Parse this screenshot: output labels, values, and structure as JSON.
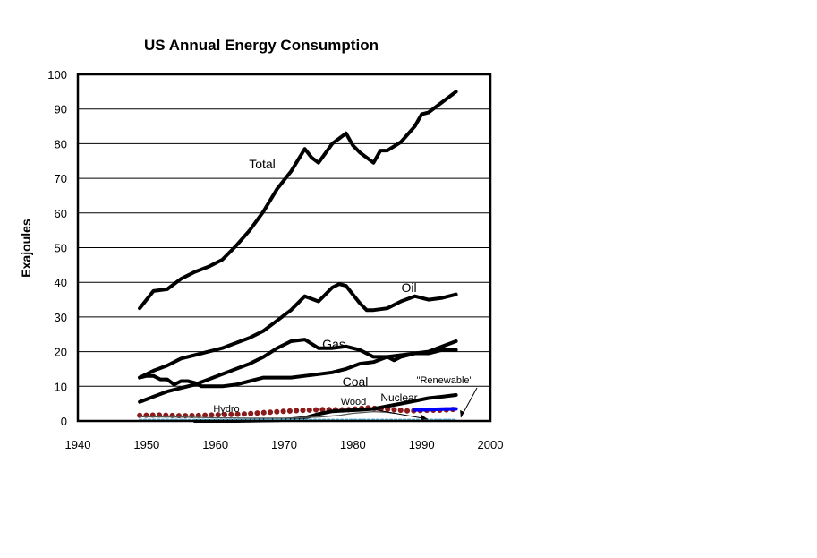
{
  "chart_data": {
    "type": "line",
    "title": "US Annual Energy Consumption",
    "xlabel": "",
    "ylabel": "Exajoules",
    "xlim": [
      1940,
      2000
    ],
    "ylim": [
      0,
      100
    ],
    "x_ticks": [
      1940,
      1950,
      1960,
      1970,
      1980,
      1990,
      2000
    ],
    "y_ticks": [
      0,
      10,
      20,
      30,
      40,
      50,
      60,
      70,
      80,
      90,
      100
    ],
    "grid": "horizontal",
    "legend": "none",
    "series": [
      {
        "name": "Total",
        "color": "#000000",
        "style": "thick",
        "x": [
          1949,
          1951,
          1953,
          1955,
          1957,
          1959,
          1961,
          1963,
          1965,
          1967,
          1969,
          1971,
          1973,
          1974,
          1975,
          1977,
          1979,
          1980,
          1981,
          1983,
          1984,
          1985,
          1987,
          1989,
          1990,
          1991,
          1993,
          1995
        ],
        "values": [
          32.5,
          37.5,
          38,
          41,
          43,
          44.5,
          46.5,
          50.5,
          55,
          60.5,
          67,
          72,
          78.5,
          76,
          74.5,
          80,
          83,
          79.5,
          77.5,
          74.5,
          78,
          78,
          80.5,
          85,
          88.5,
          89,
          92,
          95
        ]
      },
      {
        "name": "Oil",
        "color": "#000000",
        "style": "thick",
        "x": [
          1949,
          1951,
          1953,
          1955,
          1957,
          1959,
          1961,
          1963,
          1965,
          1967,
          1969,
          1971,
          1973,
          1975,
          1977,
          1978,
          1979,
          1980,
          1981,
          1982,
          1983,
          1985,
          1987,
          1989,
          1991,
          1993,
          1995
        ],
        "values": [
          12.5,
          14.5,
          16,
          18,
          19,
          20,
          21,
          22.5,
          24,
          26,
          29,
          32,
          36,
          34.5,
          38.5,
          39.5,
          39,
          36.5,
          34,
          32,
          32,
          32.5,
          34.5,
          36,
          35,
          35.5,
          36.5
        ]
      },
      {
        "name": "Gas",
        "color": "#000000",
        "style": "thick",
        "x": [
          1949,
          1951,
          1953,
          1955,
          1957,
          1959,
          1961,
          1963,
          1965,
          1967,
          1969,
          1971,
          1973,
          1975,
          1977,
          1979,
          1981,
          1983,
          1985,
          1986,
          1987,
          1989,
          1991,
          1993,
          1995
        ],
        "values": [
          5.5,
          7,
          8.5,
          9.5,
          10.5,
          12,
          13.5,
          15,
          16.5,
          18.5,
          21,
          23,
          23.5,
          21,
          21,
          21.5,
          20.5,
          18.5,
          18.5,
          17.5,
          18.5,
          19.5,
          20,
          21.5,
          23
        ]
      },
      {
        "name": "Coal",
        "color": "#000000",
        "style": "thick",
        "x": [
          1949,
          1950,
          1951,
          1952,
          1953,
          1954,
          1955,
          1956,
          1957,
          1958,
          1959,
          1961,
          1963,
          1965,
          1967,
          1969,
          1971,
          1973,
          1975,
          1977,
          1979,
          1981,
          1983,
          1985,
          1987,
          1989,
          1991,
          1993,
          1995
        ],
        "values": [
          12.5,
          13,
          13,
          12,
          12,
          10.5,
          11.5,
          11.5,
          11,
          10,
          10,
          10,
          10.5,
          11.5,
          12.5,
          12.5,
          12.5,
          13,
          13.5,
          14,
          15,
          16.5,
          17,
          18.5,
          19,
          19.5,
          19.5,
          20.5,
          20.5
        ]
      },
      {
        "name": "Hydro",
        "color": "#8b1a1a",
        "style": "dotted",
        "x": [
          1949,
          1952,
          1955,
          1958,
          1961,
          1964,
          1967,
          1970,
          1973,
          1976,
          1979,
          1982,
          1985,
          1988,
          1991,
          1993,
          1995
        ],
        "values": [
          1.6,
          1.7,
          1.5,
          1.6,
          1.8,
          2,
          2.4,
          2.8,
          3.1,
          3.3,
          3.2,
          3.8,
          3.4,
          2.9,
          3.1,
          3.1,
          3.4
        ]
      },
      {
        "name": "Nuclear",
        "color": "#000000",
        "style": "thick",
        "x": [
          1957,
          1960,
          1963,
          1966,
          1969,
          1971,
          1973,
          1975,
          1977,
          1979,
          1981,
          1983,
          1985,
          1987,
          1989,
          1991,
          1993,
          1995
        ],
        "values": [
          0,
          0,
          0,
          0.1,
          0.2,
          0.5,
          0.9,
          2,
          2.8,
          3,
          3.2,
          3.5,
          4.3,
          5,
          5.8,
          6.6,
          7,
          7.5
        ]
      },
      {
        "name": "Wood",
        "color": "#555555",
        "style": "thin",
        "x": [
          1949,
          1955,
          1960,
          1965,
          1970,
          1975,
          1978,
          1980,
          1983,
          1985,
          1986
        ],
        "values": [
          1.2,
          1.1,
          0.9,
          0.8,
          0.8,
          1.1,
          1.6,
          2.2,
          2.7,
          2.5,
          2.2
        ]
      },
      {
        "name": "\"Renewable\"",
        "color": "#0000ff",
        "style": "thick",
        "x": [
          1989,
          1991,
          1993,
          1995
        ],
        "values": [
          3.2,
          3.3,
          3.4,
          3.5
        ]
      },
      {
        "name": "",
        "color": "#5fb8d8",
        "style": "dotted",
        "x": [
          1949,
          1955,
          1960,
          1965,
          1970,
          1975,
          1980,
          1985,
          1990,
          1995
        ],
        "values": [
          0.3,
          0.3,
          0.3,
          0.3,
          0.3,
          0.3,
          0.3,
          0.3,
          0.3,
          0.3
        ]
      }
    ]
  }
}
